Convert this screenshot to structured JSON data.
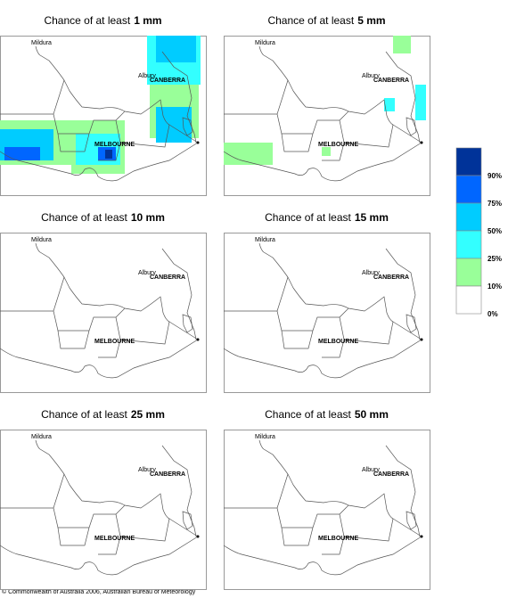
{
  "panels": [
    {
      "title": "Chance of at least",
      "amount": "1 mm"
    },
    {
      "title": "Chance of at least",
      "amount": "5 mm"
    },
    {
      "title": "Chance of at least",
      "amount": "10 mm"
    },
    {
      "title": "Chance of at least",
      "amount": "15 mm"
    },
    {
      "title": "Chance of at least",
      "amount": "25 mm"
    },
    {
      "title": "Chance of at least",
      "amount": "50 mm"
    }
  ],
  "places": [
    "Mildura",
    "CANBERRA",
    "Albury",
    "MELBOURNE"
  ],
  "legend": [
    "90%",
    "75%",
    "50%",
    "25%",
    "10%",
    "0%"
  ],
  "footer": "© Commonwealth of Australia 2006, Australian Bureau of Meteorology"
}
